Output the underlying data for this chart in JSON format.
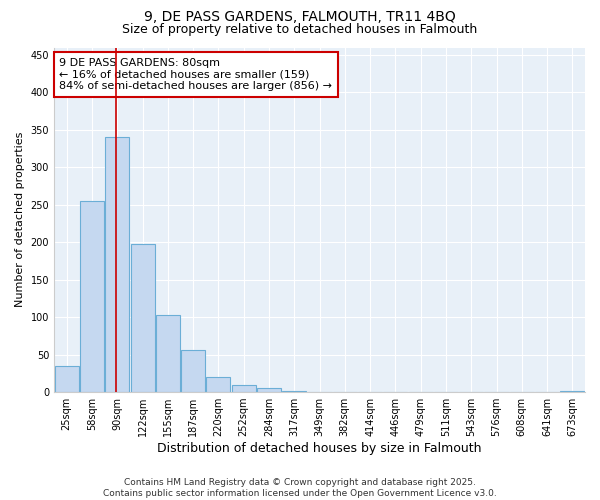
{
  "title": "9, DE PASS GARDENS, FALMOUTH, TR11 4BQ",
  "subtitle": "Size of property relative to detached houses in Falmouth",
  "xlabel": "Distribution of detached houses by size in Falmouth",
  "ylabel": "Number of detached properties",
  "categories": [
    "25sqm",
    "58sqm",
    "90sqm",
    "122sqm",
    "155sqm",
    "187sqm",
    "220sqm",
    "252sqm",
    "284sqm",
    "317sqm",
    "349sqm",
    "382sqm",
    "414sqm",
    "446sqm",
    "479sqm",
    "511sqm",
    "543sqm",
    "576sqm",
    "608sqm",
    "641sqm",
    "673sqm"
  ],
  "values": [
    35,
    255,
    340,
    198,
    103,
    56,
    20,
    10,
    5,
    2,
    0,
    0,
    0,
    0,
    0,
    0,
    0,
    0,
    0,
    0,
    2
  ],
  "bar_color": "#c5d8f0",
  "bar_edge_color": "#6baed6",
  "vline_x_index": 1.95,
  "vline_color": "#cc0000",
  "annotation_text": "9 DE PASS GARDENS: 80sqm\n← 16% of detached houses are smaller (159)\n84% of semi-detached houses are larger (856) →",
  "annotation_box_facecolor": "#ffffff",
  "annotation_box_edgecolor": "#cc0000",
  "ylim": [
    0,
    460
  ],
  "yticks": [
    0,
    50,
    100,
    150,
    200,
    250,
    300,
    350,
    400,
    450
  ],
  "fig_background_color": "#ffffff",
  "plot_background_color": "#e8f0f8",
  "grid_color": "#ffffff",
  "footer_text": "Contains HM Land Registry data © Crown copyright and database right 2025.\nContains public sector information licensed under the Open Government Licence v3.0.",
  "title_fontsize": 10,
  "subtitle_fontsize": 9,
  "xlabel_fontsize": 9,
  "ylabel_fontsize": 8,
  "tick_fontsize": 7,
  "annotation_fontsize": 8,
  "footer_fontsize": 6.5
}
